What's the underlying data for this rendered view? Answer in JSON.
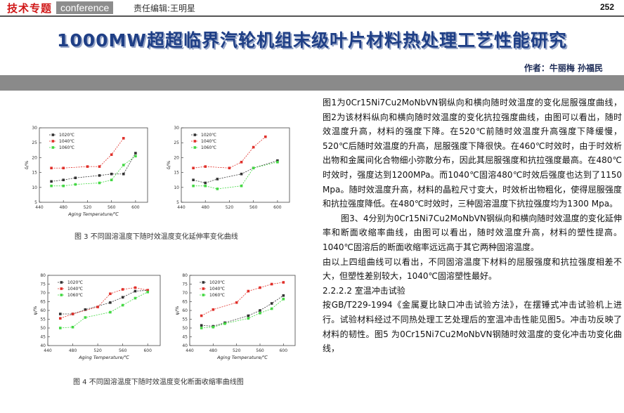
{
  "header": {
    "brand_cn": "技术专题",
    "brand_en": "conference",
    "editor": "责任编辑:王明星",
    "page_number": "252"
  },
  "title": "1000MW超超临界汽轮机组末级叶片材料热处理工艺性能研究",
  "authors": "作者：牛丽梅  孙福民",
  "captions": {
    "fig3": "图 3 不同固溶温度下随时效温度变化延伸率变化曲线",
    "fig4": "图 4 不同固溶温度下随时效温度变化断面收缩率曲线图"
  },
  "article": {
    "p1": "图1为0Cr15Ni7Cu2MoNbVN钢纵向和横向随时效温度的变化屈服强度曲线，图2为该材料纵向和横向随时效温度的变化抗拉强度曲线，由图可以看出，随时效温度升高，材料的强度下降。在520℃前随时效温度升高强度下降缓慢，520℃后随时效温度的升高，屈服强度下降很快。在460℃时效时，由于时效析出物和金属间化合物细小弥散分布，因此其屈服强度和抗拉强度最高。在480℃时效时，强度达到1200MPa。而1040℃固溶480℃时效后强度也达到了1150 Mpa。随时效温度升高，材料的晶粒尺寸变大，时效析出物粗化，使得屈服强度和抗拉强度降低。在480℃时效时，三种固溶温度下抗拉强度均为1300 Mpa。",
    "p2": "图3、4分别为0Cr15Ni7Cu2MoNbVN钢纵向和横向随时效温度的变化延伸率和断面收缩率曲线，由图可以看出，随时效温度升高，材料的塑性提高。1040℃固溶后的断面收缩率远远高于其它两种固溶温度。",
    "p3": "由以上四组曲线可以看出，不同固溶温度下材料的屈服强度和抗拉强度相差不大，但塑性差别较大，1040℃固溶塑性最好。",
    "p4": "2.2.2.2 室温冲击试验",
    "p5": "按GB/T229-1994《金属夏比缺口冲击试验方法》，在摆锤式冲击试验机上进行。试验材料经过不同热处理工艺处理后的室温冲击性能见图5。冲击功反映了材料的韧性。图5 为0Cr15Ni7Cu2MoNbVN钢随时效温度的变化冲击功变化曲线，"
  },
  "colors": {
    "title": "#1f3f86",
    "brand_red": "#d01818",
    "band_gray": "#8a8a8a",
    "series_black": "#333333",
    "series_red": "#e0302a",
    "series_green": "#44d844"
  },
  "chart_data": [
    {
      "type": "line",
      "xlabel": "Aging Temperature/℃",
      "ylabel": "δ/%",
      "xticks": [
        440,
        480,
        520,
        560,
        600
      ],
      "yticks": [
        5,
        10,
        15,
        20,
        25,
        30
      ],
      "xlim": [
        440,
        620
      ],
      "ylim": [
        5,
        30
      ],
      "legend": [
        "1020℃",
        "1040℃",
        "1060℃"
      ],
      "series": [
        {
          "name": "1020℃",
          "x": [
            460,
            480,
            500,
            540,
            560,
            580,
            600
          ],
          "y": [
            12,
            12.5,
            13.2,
            14,
            14.5,
            14.5,
            21.5
          ]
        },
        {
          "name": "1040℃",
          "x": [
            460,
            480,
            520,
            540,
            560,
            580
          ],
          "y": [
            16.5,
            16.5,
            17,
            17,
            21,
            26.5
          ]
        },
        {
          "name": "1060℃",
          "x": [
            460,
            480,
            500,
            540,
            560,
            580,
            600
          ],
          "y": [
            10.5,
            10.5,
            11,
            11.5,
            12.5,
            17.5,
            20.5
          ]
        }
      ]
    },
    {
      "type": "line",
      "xlabel": "",
      "ylabel": "δ/%",
      "xticks": [
        440,
        480,
        520,
        560,
        600
      ],
      "yticks": [
        5,
        10,
        15,
        20,
        25,
        30
      ],
      "xlim": [
        440,
        620
      ],
      "ylim": [
        5,
        30
      ],
      "legend": [
        "1020℃",
        "1040℃",
        "1060℃"
      ],
      "series": [
        {
          "name": "1020℃",
          "x": [
            460,
            480,
            500,
            540,
            560,
            600
          ],
          "y": [
            12.5,
            11.5,
            12.8,
            14.5,
            16.5,
            19
          ]
        },
        {
          "name": "1040℃",
          "x": [
            460,
            480,
            520,
            540,
            560,
            580
          ],
          "y": [
            16.5,
            17,
            16.5,
            18.5,
            23.5,
            27
          ]
        },
        {
          "name": "1060℃",
          "x": [
            460,
            480,
            500,
            540,
            560,
            600
          ],
          "y": [
            10.5,
            10.5,
            9.5,
            10.5,
            16.5,
            18.5
          ]
        }
      ]
    },
    {
      "type": "line",
      "xlabel": "Aging Temperature/℃",
      "ylabel": "ψ/%",
      "xticks": [
        440,
        480,
        520,
        560,
        600
      ],
      "yticks": [
        40,
        45,
        50,
        55,
        60,
        65,
        70,
        75,
        80
      ],
      "xlim": [
        440,
        620
      ],
      "ylim": [
        40,
        80
      ],
      "legend": [
        "1020℃",
        "1040℃",
        "1060℃"
      ],
      "series": [
        {
          "name": "1020℃",
          "x": [
            460,
            480,
            500,
            540,
            560,
            580,
            600
          ],
          "y": [
            58,
            58,
            60.5,
            64.5,
            67.5,
            71,
            71.5
          ]
        },
        {
          "name": "1040℃",
          "x": [
            460,
            480,
            520,
            540,
            560,
            580,
            600
          ],
          "y": [
            55.5,
            58,
            62,
            69.5,
            72,
            73,
            71.5
          ]
        },
        {
          "name": "1060℃",
          "x": [
            460,
            480,
            500,
            540,
            560,
            580,
            600
          ],
          "y": [
            50,
            50.5,
            56,
            59,
            63,
            67,
            70.5
          ]
        }
      ]
    },
    {
      "type": "line",
      "xlabel": "Aging Temperature/℃",
      "ylabel": "ψ/%",
      "xticks": [
        440,
        480,
        520,
        560,
        600
      ],
      "yticks": [
        40,
        45,
        50,
        55,
        60,
        65,
        70,
        75,
        80
      ],
      "xlim": [
        440,
        620
      ],
      "ylim": [
        40,
        80
      ],
      "legend": [
        "1020℃",
        "1040℃",
        "1060℃"
      ],
      "series": [
        {
          "name": "1020℃",
          "x": [
            460,
            480,
            500,
            540,
            560,
            580,
            600
          ],
          "y": [
            51.5,
            51,
            53,
            57,
            60,
            64,
            68.5
          ]
        },
        {
          "name": "1040℃",
          "x": [
            460,
            480,
            520,
            540,
            560,
            580,
            600
          ],
          "y": [
            57,
            60.5,
            64.5,
            71,
            73,
            75,
            76
          ]
        },
        {
          "name": "1060℃",
          "x": [
            460,
            480,
            500,
            540,
            560,
            580,
            600
          ],
          "y": [
            50,
            50.5,
            52.5,
            55.5,
            58.5,
            61,
            66.5
          ]
        }
      ]
    }
  ]
}
